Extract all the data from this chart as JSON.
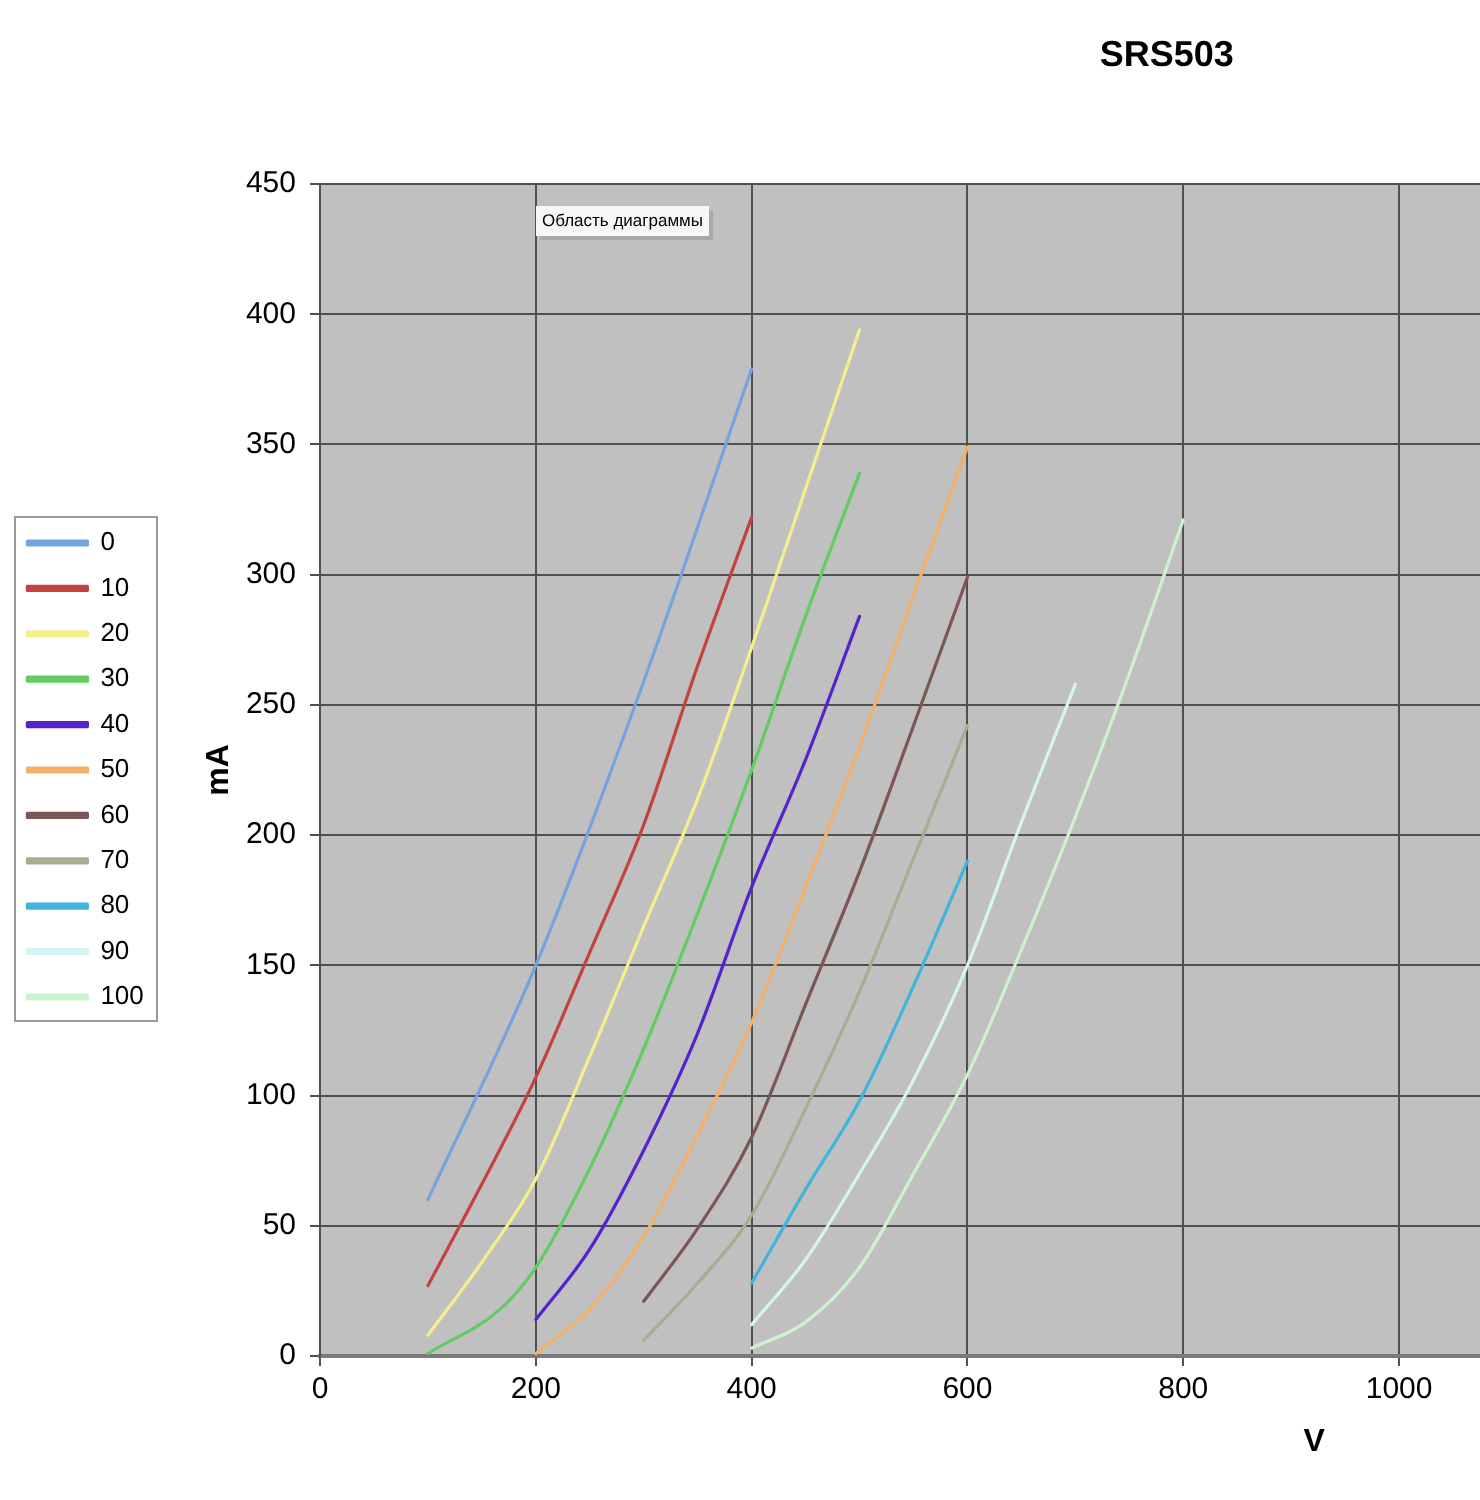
{
  "chart_data": {
    "type": "line",
    "title": "SRS503",
    "xlabel": "V",
    "ylabel": "mA",
    "annotations": [
      "Область диаграммы"
    ],
    "xlim": [
      0,
      1075
    ],
    "xticks": [
      0,
      200,
      400,
      600,
      800,
      1000
    ],
    "ylim": [
      0,
      450
    ],
    "yticks": [
      0,
      50,
      100,
      150,
      200,
      250,
      300,
      350,
      400,
      450
    ],
    "grid": true,
    "legend": "left",
    "series": [
      {
        "name": "0",
        "color": "#74a3dd",
        "x": [
          100,
          200,
          300,
          400
        ],
        "values": [
          60,
          150,
          259,
          379
        ]
      },
      {
        "name": "10",
        "color": "#c4413f",
        "x": [
          100,
          150,
          200,
          250,
          300,
          350,
          400
        ],
        "values": [
          27,
          66,
          107,
          155,
          204,
          265,
          322
        ]
      },
      {
        "name": "20",
        "color": "#f6ee8c",
        "x": [
          100,
          150,
          200,
          250,
          300,
          350,
          400,
          450,
          500
        ],
        "values": [
          8,
          36,
          68,
          115,
          165,
          214,
          272,
          333,
          394
        ]
      },
      {
        "name": "30",
        "color": "#62cc62",
        "x": [
          100,
          167,
          200,
          250,
          300,
          350,
          400,
          450,
          500
        ],
        "values": [
          1,
          18,
          34,
          72,
          118,
          170,
          225,
          284,
          339
        ]
      },
      {
        "name": "40",
        "color": "#5522cc",
        "x": [
          200,
          250,
          300,
          350,
          400,
          450,
          500
        ],
        "values": [
          14,
          41,
          79,
          124,
          180,
          229,
          284
        ]
      },
      {
        "name": "50",
        "color": "#f3b06a",
        "x": [
          200,
          250,
          300,
          350,
          400,
          450,
          500,
          550,
          600
        ],
        "values": [
          1,
          18,
          46,
          85,
          128,
          180,
          234,
          292,
          349
        ]
      },
      {
        "name": "60",
        "color": "#7c5555",
        "x": [
          300,
          350,
          400,
          450,
          500,
          550,
          600
        ],
        "values": [
          21,
          49,
          84,
          135,
          186,
          242,
          299
        ]
      },
      {
        "name": "70",
        "color": "#a3af8e",
        "x": [
          300,
          350,
          400,
          450,
          500,
          550,
          600
        ],
        "values": [
          6,
          28,
          54,
          95,
          140,
          191,
          242
        ]
      },
      {
        "name": "80",
        "color": "#3fb5de",
        "x": [
          400,
          450,
          500,
          550,
          600
        ],
        "values": [
          28,
          64,
          98,
          142,
          190
        ]
      },
      {
        "name": "90",
        "color": "#d5f5f5",
        "x": [
          400,
          450,
          500,
          550,
          600,
          650,
          700
        ],
        "values": [
          12,
          37,
          70,
          106,
          150,
          205,
          258
        ]
      },
      {
        "name": "100",
        "color": "#cdf3cd",
        "x": [
          400,
          450,
          500,
          550,
          600,
          650,
          700,
          750,
          800
        ],
        "values": [
          3,
          13,
          34,
          70,
          108,
          156,
          207,
          262,
          321
        ]
      }
    ]
  }
}
